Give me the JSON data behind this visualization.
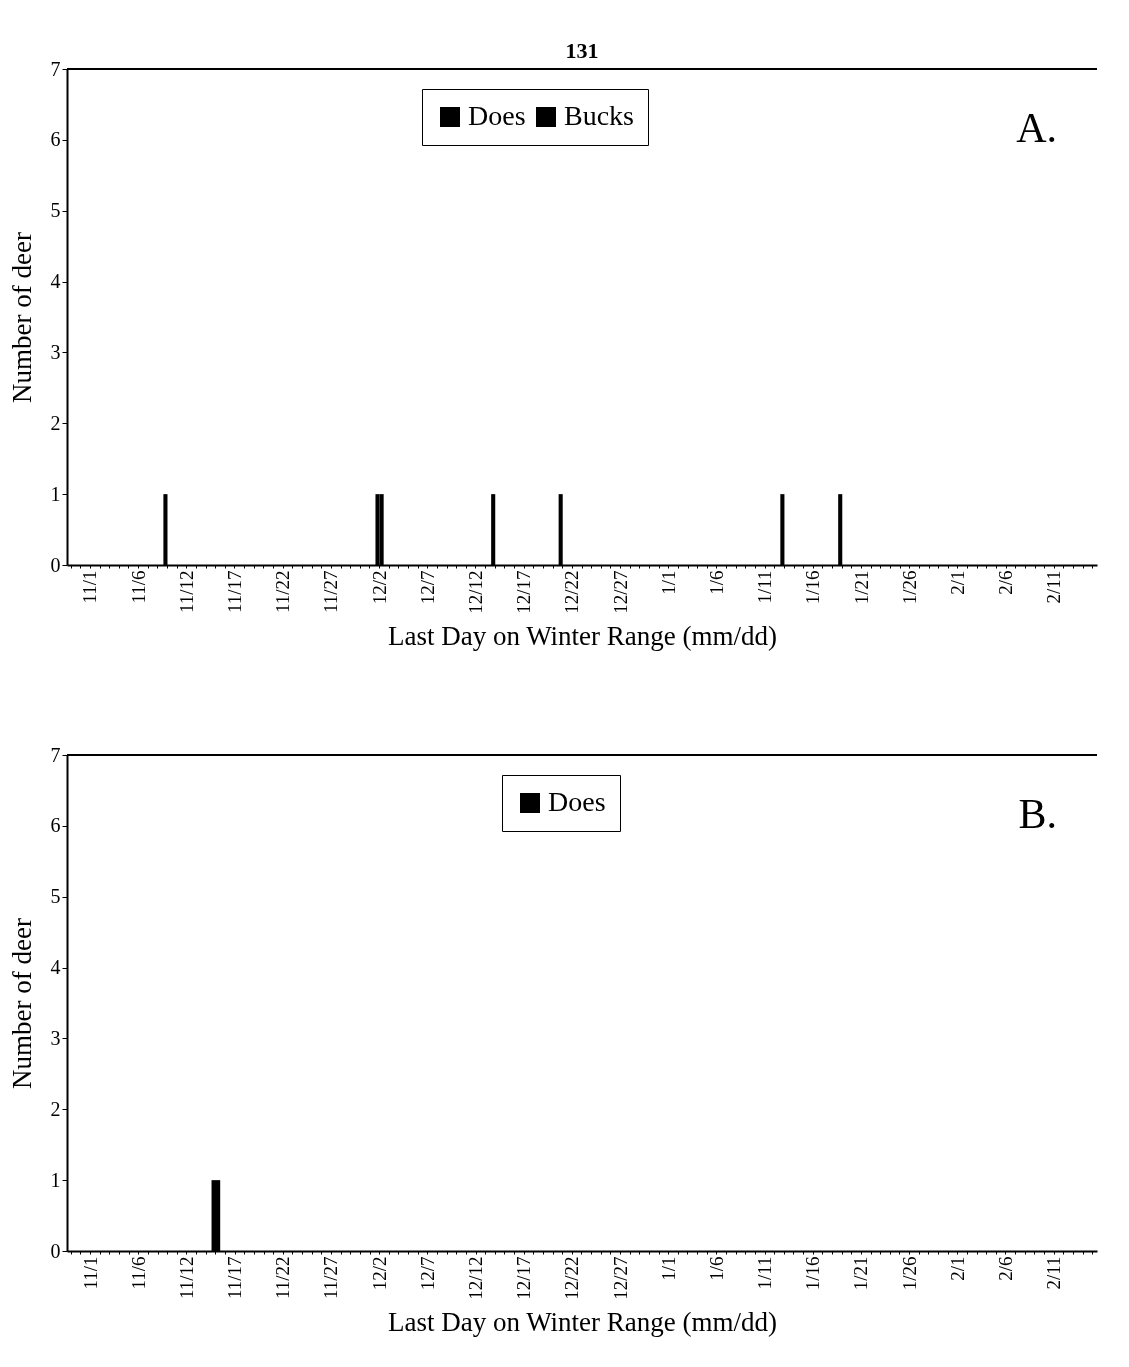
{
  "chart_data": [
    {
      "type": "bar",
      "xlabel": "Last Day on Winter Range (mm/dd)",
      "ylabel": "Number of deer",
      "annotations": [
        "131",
        "A."
      ],
      "legend": "top",
      "categories": [
        null,
        null,
        "11/1",
        null,
        null,
        null,
        null,
        "11/6",
        null,
        null,
        null,
        null,
        "11/12",
        null,
        null,
        null,
        null,
        "11/17",
        null,
        null,
        null,
        null,
        "11/22",
        null,
        null,
        null,
        null,
        "11/27",
        null,
        null,
        null,
        null,
        "12/2",
        null,
        null,
        null,
        null,
        "12/7",
        null,
        null,
        null,
        null,
        "12/12",
        null,
        null,
        null,
        null,
        "12/17",
        null,
        null,
        null,
        null,
        "12/22",
        null,
        null,
        null,
        null,
        "12/27",
        null,
        null,
        null,
        null,
        "1/1",
        null,
        null,
        null,
        null,
        "1/6",
        null,
        null,
        null,
        null,
        "1/11",
        null,
        null,
        null,
        null,
        "1/16",
        null,
        null,
        null,
        null,
        "1/21",
        null,
        null,
        null,
        null,
        "1/26",
        null,
        null,
        null,
        null,
        "2/1",
        null,
        null,
        null,
        null,
        "2/6",
        null,
        null,
        null,
        null,
        "2/11",
        null,
        null,
        null,
        null
      ],
      "series": [
        {
          "name": "Does",
          "color": "#000000",
          "values": [
            0,
            0,
            0,
            0,
            0,
            0,
            0,
            0,
            0,
            0,
            1,
            0,
            0,
            0,
            0,
            0,
            0,
            0,
            0,
            0,
            0,
            0,
            0,
            0,
            0,
            0,
            0,
            0,
            0,
            0,
            0,
            0,
            1,
            0,
            0,
            0,
            0,
            0,
            0,
            0,
            0,
            0,
            0,
            0,
            1,
            0,
            0,
            0,
            0,
            0,
            0,
            1,
            0,
            0,
            0,
            0,
            0,
            0,
            0,
            0,
            0,
            0,
            0,
            0,
            0,
            0,
            0,
            0,
            0,
            0,
            0,
            0,
            0,
            0,
            1,
            0,
            0,
            0,
            0,
            0,
            1,
            0,
            0,
            0,
            0,
            0,
            0,
            0,
            0,
            0,
            0,
            0,
            0,
            0,
            0,
            0,
            0,
            0,
            0,
            0,
            0,
            0,
            0,
            0,
            0,
            0,
            0
          ]
        },
        {
          "name": "Bucks",
          "color": "#000000",
          "values": [
            0,
            0,
            0,
            0,
            0,
            0,
            0,
            0,
            0,
            0,
            0,
            0,
            0,
            0,
            0,
            0,
            0,
            0,
            0,
            0,
            0,
            0,
            0,
            0,
            0,
            0,
            0,
            0,
            0,
            0,
            0,
            0,
            1,
            0,
            0,
            0,
            0,
            0,
            0,
            0,
            0,
            0,
            0,
            0,
            0,
            0,
            0,
            0,
            0,
            0,
            0,
            0,
            0,
            0,
            0,
            0,
            0,
            0,
            0,
            0,
            0,
            0,
            0,
            0,
            0,
            0,
            0,
            0,
            0,
            0,
            0,
            0,
            0,
            0,
            0,
            0,
            0,
            0,
            0,
            0,
            0,
            0,
            0,
            0,
            0,
            0,
            0,
            0,
            0,
            0,
            0,
            0,
            0,
            0,
            0,
            0,
            0,
            0,
            0,
            0,
            0,
            0,
            0,
            0,
            0,
            0,
            0
          ]
        }
      ],
      "ylim": [
        0,
        7
      ],
      "yticks": [
        0,
        1,
        2,
        3,
        4,
        5,
        6,
        7
      ]
    },
    {
      "type": "bar",
      "xlabel": "Last Day on Winter Range (mm/dd)",
      "ylabel": "Number of deer",
      "annotations": [
        "B."
      ],
      "legend": "top",
      "categories": [
        null,
        null,
        "11/1",
        null,
        null,
        null,
        null,
        "11/6",
        null,
        null,
        null,
        null,
        "11/12",
        null,
        null,
        null,
        null,
        "11/17",
        null,
        null,
        null,
        null,
        "11/22",
        null,
        null,
        null,
        null,
        "11/27",
        null,
        null,
        null,
        null,
        "12/2",
        null,
        null,
        null,
        null,
        "12/7",
        null,
        null,
        null,
        null,
        "12/12",
        null,
        null,
        null,
        null,
        "12/17",
        null,
        null,
        null,
        null,
        "12/22",
        null,
        null,
        null,
        null,
        "12/27",
        null,
        null,
        null,
        null,
        "1/1",
        null,
        null,
        null,
        null,
        "1/6",
        null,
        null,
        null,
        null,
        "1/11",
        null,
        null,
        null,
        null,
        "1/16",
        null,
        null,
        null,
        null,
        "1/21",
        null,
        null,
        null,
        null,
        "1/26",
        null,
        null,
        null,
        null,
        "2/1",
        null,
        null,
        null,
        null,
        "2/6",
        null,
        null,
        null,
        null,
        "2/11",
        null,
        null,
        null,
        null
      ],
      "series": [
        {
          "name": "Does",
          "color": "#000000",
          "values": [
            0,
            0,
            0,
            0,
            0,
            0,
            0,
            0,
            0,
            0,
            0,
            0,
            0,
            0,
            0,
            1,
            0,
            0,
            0,
            0,
            0,
            0,
            0,
            0,
            0,
            0,
            0,
            0,
            0,
            0,
            0,
            0,
            0,
            0,
            0,
            0,
            0,
            0,
            0,
            0,
            0,
            0,
            0,
            0,
            0,
            0,
            0,
            0,
            0,
            0,
            0,
            0,
            0,
            0,
            0,
            0,
            0,
            0,
            0,
            0,
            0,
            0,
            0,
            0,
            0,
            0,
            0,
            0,
            0,
            0,
            0,
            0,
            0,
            0,
            0,
            0,
            0,
            0,
            0,
            0,
            0,
            0,
            0,
            0,
            0,
            0,
            0,
            0,
            0,
            0,
            0,
            0,
            0,
            0,
            0,
            0,
            0,
            0,
            0,
            0,
            0,
            0,
            0,
            0,
            0,
            0,
            0
          ]
        }
      ],
      "ylim": [
        0,
        7
      ],
      "yticks": [
        0,
        1,
        2,
        3,
        4,
        5,
        6,
        7
      ]
    }
  ]
}
